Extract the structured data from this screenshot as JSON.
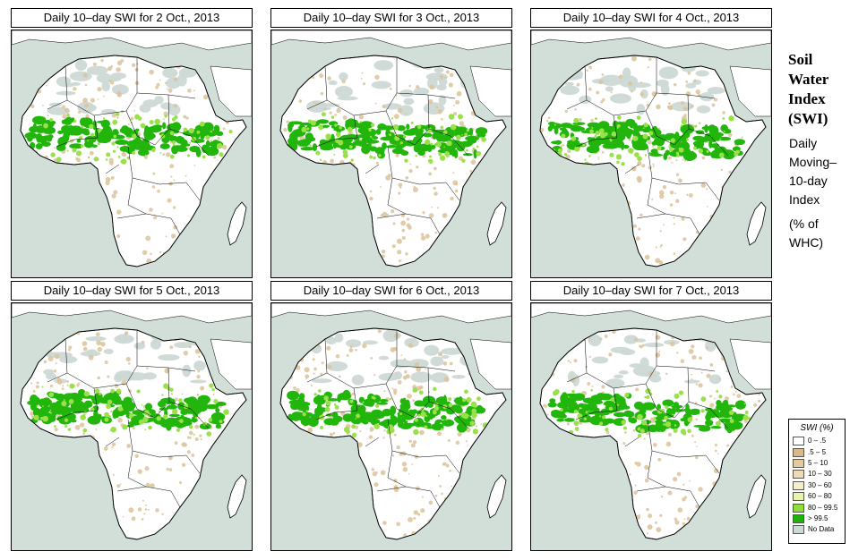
{
  "panels": [
    {
      "title": "Daily 10–day SWI for  2 Oct., 2013"
    },
    {
      "title": "Daily 10–day SWI for  3 Oct., 2013"
    },
    {
      "title": "Daily 10–day SWI for  4 Oct., 2013"
    },
    {
      "title": "Daily 10–day SWI for  5 Oct., 2013"
    },
    {
      "title": "Daily 10–day SWI for  6 Oct., 2013"
    },
    {
      "title": "Daily 10–day SWI for  7 Oct., 2013"
    }
  ],
  "sidebar": {
    "title_lines": [
      "Soil",
      "Water",
      "Index",
      "(SWI)"
    ],
    "subtitle_lines": [
      "Daily",
      "Moving–",
      "10-day",
      "Index"
    ],
    "unit_lines": [
      "(% of",
      " WHC)"
    ]
  },
  "legend": {
    "title": "SWI (%)",
    "items": [
      {
        "label": "0 – .5",
        "color": "#ffffff"
      },
      {
        "label": ".5 – 5",
        "color": "#d8b98a"
      },
      {
        "label": "5 – 10",
        "color": "#e3c99e"
      },
      {
        "label": "10 – 30",
        "color": "#eedcb8"
      },
      {
        "label": "30 – 60",
        "color": "#f6edcc"
      },
      {
        "label": "60 – 80",
        "color": "#e9f3b0"
      },
      {
        "label": "80 – 99.5",
        "color": "#8fdc3c"
      },
      {
        "label": "> 99.5",
        "color": "#1fb30a"
      },
      {
        "label": "No Data",
        "color": "#cdd9d6"
      }
    ]
  },
  "colors": {
    "ocean": "#d2dfd9",
    "land": "#ffffff",
    "dry_tan": "#dcc39a",
    "wet_green": "#22b60d",
    "moist_light_green": "#9ae04a",
    "no_data": "#cdd9d6"
  }
}
